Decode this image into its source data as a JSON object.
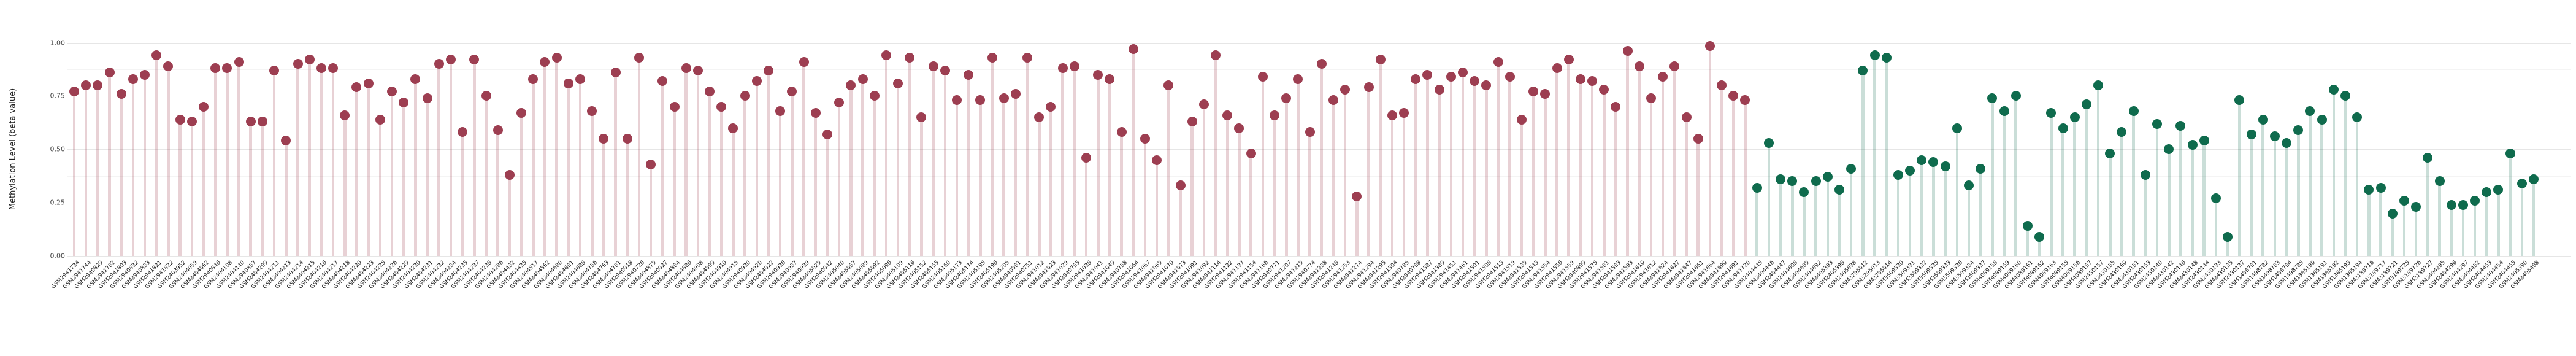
{
  "chart_data": {
    "type": "lollipop",
    "title": "",
    "xlabel": "",
    "ylabel": "Methylation Level (beta value)",
    "ylim": [
      0,
      1
    ],
    "grid": "horizontal, major every 0.25 with faint minor every 0.125, white background, no legend",
    "yticks": [
      {
        "label": "1.00",
        "v": 1.0
      },
      {
        "label": "0.75",
        "v": 0.75
      },
      {
        "label": "0.50",
        "v": 0.5
      },
      {
        "label": "0.25",
        "v": 0.25
      },
      {
        "label": "0.00",
        "v": 0.0
      }
    ],
    "yticks_minor": [
      0.875,
      0.625,
      0.375,
      0.125
    ],
    "group_split_index": 143,
    "colors": {
      "group1_dot": "#9d3e51",
      "group1_stem": "rgba(157,62,81,0.24)",
      "group2_dot": "#0f6b4d",
      "group2_stem": "rgba(15,107,77,0.22)"
    },
    "categories": [
      "GSM2941734",
      "GSM2941744",
      "GSM2940829",
      "GSM2941782",
      "GSM2941803",
      "GSM2940832",
      "GSM2940833",
      "GSM2941821",
      "GSM2941822",
      "GSM2403952",
      "GSM2404059",
      "GSM2404062",
      "GSM2940846",
      "GSM2404108",
      "GSM2404140",
      "GSM2940857",
      "GSM2404209",
      "GSM2404211",
      "GSM2404213",
      "GSM2404214",
      "GSM2404215",
      "GSM2404216",
      "GSM2404217",
      "GSM2404218",
      "GSM2404220",
      "GSM2404223",
      "GSM2404225",
      "GSM2404226",
      "GSM2404229",
      "GSM2404230",
      "GSM2404231",
      "GSM2404232",
      "GSM2404234",
      "GSM2404235",
      "GSM2404237",
      "GSM2404238",
      "GSM2404286",
      "GSM2404432",
      "GSM2404435",
      "GSM2404517",
      "GSM2404562",
      "GSM2404680",
      "GSM2404681",
      "GSM2404688",
      "GSM2404756",
      "GSM2404763",
      "GSM2404781",
      "GSM2940918",
      "GSM2940726",
      "GSM2404879",
      "GSM2940927",
      "GSM2404884",
      "GSM2404886",
      "GSM2404908",
      "GSM2404909",
      "GSM2404910",
      "GSM2404915",
      "GSM2940930",
      "GSM2404920",
      "GSM2404922",
      "GSM2940936",
      "GSM2940937",
      "GSM2940939",
      "GSM2405029",
      "GSM2940942",
      "GSM2405040",
      "GSM2405057",
      "GSM2405089",
      "GSM2405092",
      "GSM2405096",
      "GSM2405109",
      "GSM2405116",
      "GSM2405152",
      "GSM2405155",
      "GSM2405160",
      "GSM2405173",
      "GSM2405174",
      "GSM2405195",
      "GSM2405196",
      "GSM2405205",
      "GSM2940981",
      "GSM2940751",
      "GSM2941012",
      "GSM2941023",
      "GSM2941029",
      "GSM2940755",
      "GSM2941038",
      "GSM2941041",
      "GSM2941049",
      "GSM2940758",
      "GSM2941064",
      "GSM2941067",
      "GSM2941069",
      "GSM2941070",
      "GSM2941073",
      "GSM2941091",
      "GSM2941092",
      "GSM2941114",
      "GSM2941122",
      "GSM2941137",
      "GSM2941154",
      "GSM2941166",
      "GSM2940771",
      "GSM2941207",
      "GSM2941219",
      "GSM2940774",
      "GSM2941238",
      "GSM2941248",
      "GSM2941253",
      "GSM2941274",
      "GSM2941294",
      "GSM2941295",
      "GSM2941304",
      "GSM2940785",
      "GSM2940788",
      "GSM2941387",
      "GSM2941389",
      "GSM2941451",
      "GSM2941461",
      "GSM2941501",
      "GSM2941508",
      "GSM2941513",
      "GSM2941519",
      "GSM2941539",
      "GSM2941543",
      "GSM2941554",
      "GSM2941556",
      "GSM2941559",
      "GSM2940809",
      "GSM2941575",
      "GSM2941581",
      "GSM2941583",
      "GSM2941593",
      "GSM2941610",
      "GSM2941612",
      "GSM2941624",
      "GSM2941627",
      "GSM2941647",
      "GSM2941661",
      "GSM2941664",
      "GSM2941690",
      "GSM2941691",
      "GSM2941720",
      "GSM2404445",
      "GSM2404446",
      "GSM2404447",
      "GSM2404608",
      "GSM2404609",
      "GSM2404692",
      "GSM2405393",
      "GSM2405398",
      "GSM2405638",
      "GSM3295012",
      "GSM3295013",
      "GSM3295014",
      "GSM3509330",
      "GSM3509331",
      "GSM3509332",
      "GSM3509335",
      "GSM3509333",
      "GSM3509336",
      "GSM3509334",
      "GSM3509337",
      "GSM4089158",
      "GSM4089159",
      "GSM4089160",
      "GSM4089161",
      "GSM4089162",
      "GSM4089163",
      "GSM4089155",
      "GSM4089156",
      "GSM4089157",
      "GSM2430157",
      "GSM2430155",
      "GSM2430160",
      "GSM2430151",
      "GSM2430153",
      "GSM2430140",
      "GSM2430142",
      "GSM2430146",
      "GSM2430148",
      "GSM2430144",
      "GSM2430133",
      "GSM2430135",
      "GSM2430137",
      "GSM1498781",
      "GSM1498782",
      "GSM1498783",
      "GSM1498784",
      "GSM1498785",
      "GSM1365190",
      "GSM1365191",
      "GSM1365192",
      "GSM1365193",
      "GSM1365194",
      "GSM3189716",
      "GSM3189717",
      "GSM3189721",
      "GSM3189725",
      "GSM3189726",
      "GSM3189727",
      "GSM2404295",
      "GSM2404296",
      "GSM2404297",
      "GSM2404452",
      "GSM2404453",
      "GSM2404454",
      "GSM2404455",
      "GSM2405390",
      "GSM2405408"
    ],
    "values": [
      0.77,
      0.8,
      0.8,
      0.86,
      0.76,
      0.83,
      0.85,
      0.94,
      0.89,
      0.64,
      0.63,
      0.7,
      0.88,
      0.88,
      0.91,
      0.63,
      0.63,
      0.87,
      0.54,
      0.9,
      0.92,
      0.88,
      0.88,
      0.66,
      0.79,
      0.81,
      0.64,
      0.77,
      0.72,
      0.83,
      0.74,
      0.9,
      0.92,
      0.58,
      0.92,
      0.75,
      0.59,
      0.38,
      0.67,
      0.83,
      0.91,
      0.93,
      0.81,
      0.83,
      0.68,
      0.55,
      0.86,
      0.55,
      0.93,
      0.43,
      0.82,
      0.7,
      0.88,
      0.87,
      0.77,
      0.7,
      0.6,
      0.75,
      0.82,
      0.87,
      0.68,
      0.77,
      0.91,
      0.67,
      0.57,
      0.72,
      0.8,
      0.83,
      0.75,
      0.94,
      0.81,
      0.93,
      0.65,
      0.89,
      0.87,
      0.73,
      0.85,
      0.73,
      0.93,
      0.74,
      0.76,
      0.93,
      0.65,
      0.7,
      0.88,
      0.89,
      0.46,
      0.85,
      0.83,
      0.58,
      0.97,
      0.55,
      0.45,
      0.8,
      0.33,
      0.63,
      0.71,
      0.94,
      0.66,
      0.6,
      0.48,
      0.84,
      0.66,
      0.74,
      0.83,
      0.58,
      0.9,
      0.73,
      0.78,
      0.28,
      0.79,
      0.92,
      0.66,
      0.67,
      0.83,
      0.85,
      0.78,
      0.84,
      0.86,
      0.82,
      0.8,
      0.91,
      0.84,
      0.64,
      0.77,
      0.76,
      0.88,
      0.92,
      0.83,
      0.82,
      0.78,
      0.7,
      0.96,
      0.89,
      0.74,
      0.84,
      0.89,
      0.65,
      0.55,
      0.985,
      0.8,
      0.75,
      0.73,
      0.32,
      0.53,
      0.36,
      0.35,
      0.3,
      0.35,
      0.37,
      0.31,
      0.41,
      0.87,
      0.94,
      0.93,
      0.38,
      0.4,
      0.45,
      0.44,
      0.42,
      0.6,
      0.33,
      0.41,
      0.74,
      0.68,
      0.75,
      0.14,
      0.09,
      0.67,
      0.6,
      0.65,
      0.71,
      0.8,
      0.48,
      0.58,
      0.68,
      0.38,
      0.62,
      0.5,
      0.61,
      0.52,
      0.54,
      0.27,
      0.09,
      0.73,
      0.57,
      0.64,
      0.56,
      0.53,
      0.59,
      0.68,
      0.64,
      0.78,
      0.75,
      0.65,
      0.31,
      0.32,
      0.2,
      0.26,
      0.23,
      0.46,
      0.35,
      0.24,
      0.24,
      0.26,
      0.3,
      0.31,
      0.48,
      0.34,
      0.36
    ]
  }
}
